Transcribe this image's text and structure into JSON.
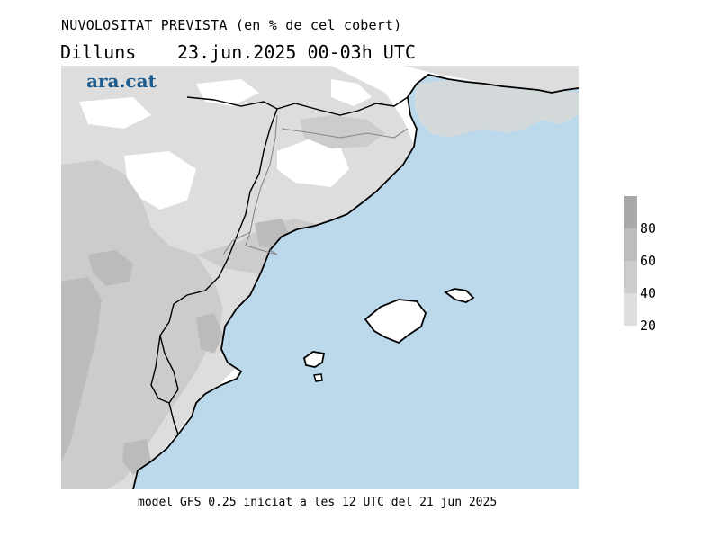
{
  "header": {
    "title": "NUVOLOSITAT PREVISTA (en % de cel cobert)",
    "day": "Dilluns",
    "datetime": "23.jun.2025 00-03h UTC"
  },
  "logo": {
    "text": "ara.cat"
  },
  "footer": {
    "text": "model GFS 0.25 iniciat a les 12 UTC del 21 jun 2025"
  },
  "legend": {
    "labels": [
      "80",
      "60",
      "40",
      "20"
    ],
    "colors": [
      "#a9a9a9",
      "#bdbdbd",
      "#cdcdcd",
      "#dedede"
    ]
  },
  "map": {
    "sea_color": "#bcd9ec",
    "land_color": "#ffffff",
    "cloud_colors": [
      "#dddddd",
      "#cccccc",
      "#bbbbbb"
    ],
    "islands": [
      "Mallorca",
      "Menorca",
      "Eivissa",
      "Formentera"
    ]
  }
}
